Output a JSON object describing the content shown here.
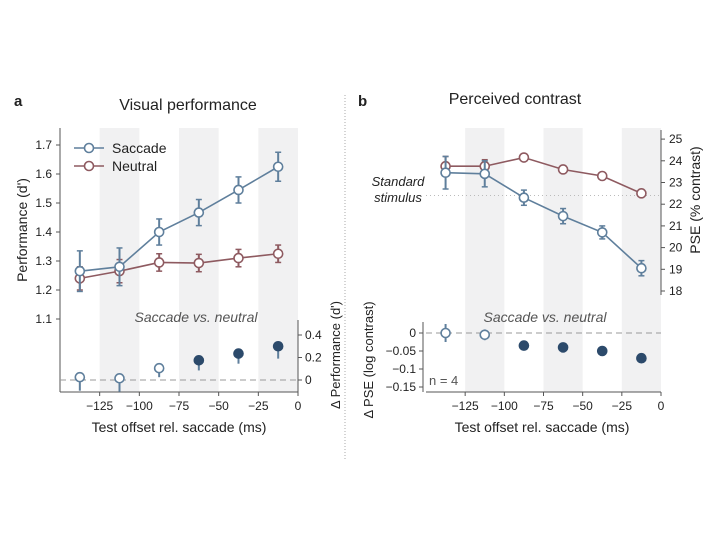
{
  "chart_data": [
    {
      "type": "line",
      "panel_label": "a",
      "title": "Visual performance",
      "xlabel": "Test offset rel. saccade (ms)",
      "ylabel": "Performance (d')",
      "y2label": "Δ Performance (d')",
      "inset_label": "Saccade vs. neutral",
      "xlim": [
        -150,
        0
      ],
      "xticks": [
        -125,
        -100,
        -75,
        -50,
        -25,
        0
      ],
      "ylim": [
        1.1,
        1.7
      ],
      "yticks": [
        "1.1",
        "1.2",
        "1.3",
        "1.4",
        "1.5",
        "1.6",
        "1.7"
      ],
      "y2ticks": [
        "0",
        "0.2",
        "0.4"
      ],
      "x": [
        -137.5,
        -112.5,
        -87.5,
        -62.5,
        -37.5,
        -12.5
      ],
      "legend_position": "top-left",
      "series": [
        {
          "name": "Saccade",
          "color": "#5f7f9c",
          "values": [
            1.265,
            1.28,
            1.4,
            1.467,
            1.545,
            1.625
          ],
          "errors": [
            0.07,
            0.065,
            0.045,
            0.045,
            0.045,
            0.05
          ]
        },
        {
          "name": "Neutral",
          "color": "#8e5a60",
          "values": [
            1.24,
            1.265,
            1.295,
            1.293,
            1.31,
            1.325
          ],
          "errors": [
            0.04,
            0.04,
            0.03,
            0.03,
            0.03,
            0.03
          ]
        }
      ],
      "difference": {
        "values": [
          0.025,
          0.015,
          0.105,
          0.175,
          0.235,
          0.3
        ],
        "errors": [
          0.12,
          0.12,
          0.08,
          0.09,
          0.09,
          0.11
        ],
        "significant": [
          false,
          false,
          false,
          true,
          true,
          true
        ]
      }
    },
    {
      "type": "line",
      "panel_label": "b",
      "title": "Perceived contrast",
      "xlabel": "Test offset rel. saccade (ms)",
      "ylabel": "PSE (% contrast)",
      "y2label": "Δ PSE (log contrast)",
      "inset_label": "Saccade vs. neutral",
      "reference_label": "Standard stimulus",
      "reference_value": 22.4,
      "n_label": "n = 4",
      "xlim": [
        -150,
        0
      ],
      "xticks": [
        -125,
        -100,
        -75,
        -50,
        -25,
        0
      ],
      "ylim": [
        18,
        25
      ],
      "yticks": [
        "18",
        "19",
        "20",
        "21",
        "22",
        "23",
        "24",
        "25"
      ],
      "y2ticks": [
        "0",
        "-0.05",
        "-0.1",
        "-0.15"
      ],
      "x": [
        -137.5,
        -112.5,
        -87.5,
        -62.5,
        -37.5,
        -12.5
      ],
      "series": [
        {
          "name": "Saccade",
          "color": "#5f7f9c",
          "values": [
            23.45,
            23.4,
            22.3,
            21.45,
            20.7,
            19.05
          ],
          "errors": [
            0.75,
            0.6,
            0.35,
            0.35,
            0.3,
            0.35
          ]
        },
        {
          "name": "Neutral",
          "color": "#8e5a60",
          "values": [
            23.75,
            23.75,
            24.15,
            23.6,
            23.3,
            22.5
          ],
          "errors": [
            0.45,
            0.3,
            0.1,
            0.1,
            0.1,
            0.1
          ]
        }
      ],
      "difference": {
        "values": [
          0,
          -0.005,
          -0.035,
          -0.04,
          -0.05,
          -0.07
        ],
        "errors": [
          0.025,
          0.015,
          0,
          0,
          0,
          0
        ],
        "significant": [
          false,
          false,
          true,
          true,
          true,
          true
        ]
      }
    }
  ]
}
